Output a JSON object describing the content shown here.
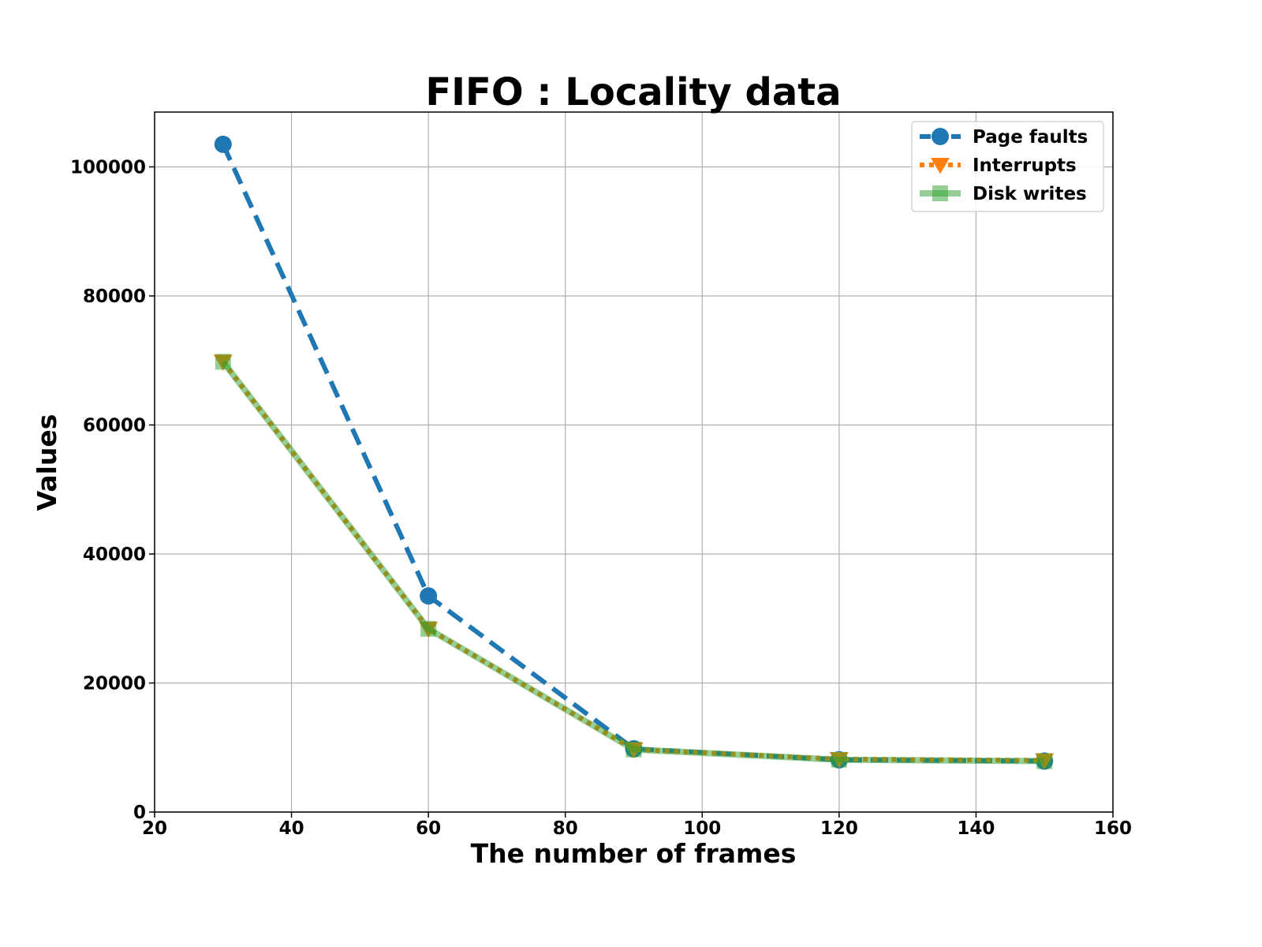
{
  "chart_data": {
    "type": "line",
    "title": "FIFO : Locality data",
    "xlabel": "The number of frames",
    "ylabel": "Values",
    "xlim": [
      20,
      160
    ],
    "ylim": [
      0,
      108500
    ],
    "xticks": [
      20,
      40,
      60,
      80,
      100,
      120,
      140,
      160
    ],
    "yticks": [
      0,
      20000,
      40000,
      60000,
      80000,
      100000
    ],
    "x": [
      30,
      60,
      90,
      120,
      150
    ],
    "grid": true,
    "legend_position": "top-right",
    "series": [
      {
        "name": "Page faults",
        "values": [
          103500,
          33500,
          9800,
          8100,
          7900
        ],
        "color": "#1f77b4",
        "line_style": "dashed",
        "marker": "circle"
      },
      {
        "name": "Interrupts",
        "values": [
          69800,
          28400,
          9700,
          8200,
          8000
        ],
        "color": "#ff7f0e",
        "line_style": "dotted",
        "marker": "triangle-down"
      },
      {
        "name": "Disk writes",
        "values": [
          69800,
          28400,
          9700,
          8100,
          7900
        ],
        "color": "#2ca02c",
        "line_style": "solid",
        "marker": "square"
      }
    ]
  }
}
